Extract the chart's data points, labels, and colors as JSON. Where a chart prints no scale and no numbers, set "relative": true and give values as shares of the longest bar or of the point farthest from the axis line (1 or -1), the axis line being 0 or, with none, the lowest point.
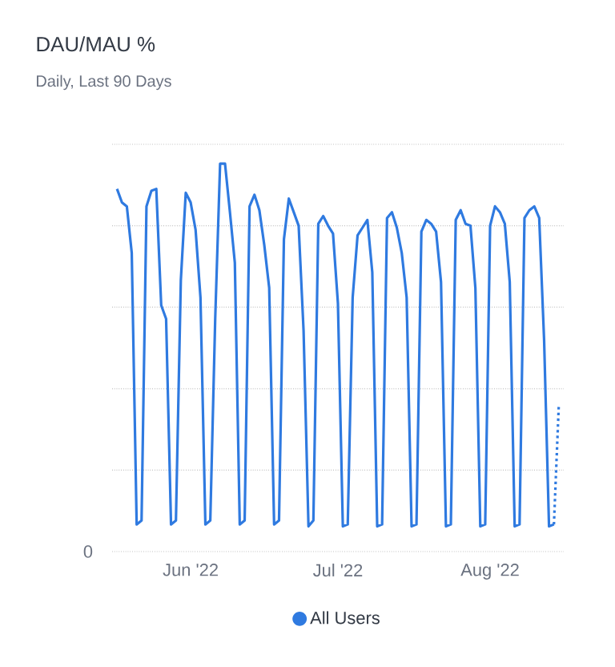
{
  "chart_data": {
    "type": "line",
    "title": "DAU/MAU %",
    "subtitle": "Daily, Last 90 Days",
    "relative": true,
    "grid": "y",
    "legend": "bottom",
    "marker": "none",
    "xlim": [
      "2022-05-16",
      "2022-08-16"
    ],
    "xticks": [
      {
        "value": "2022-06-01",
        "label": "Jun '22"
      },
      {
        "value": "2022-07-01",
        "label": "Jul '22"
      },
      {
        "value": "2022-08-01",
        "label": "Aug '22"
      }
    ],
    "annotations": [
      "0"
    ],
    "series": [
      {
        "name": "All Users",
        "color": "#2f7ae0",
        "line_style": "solid",
        "x": [
          "2022-05-17",
          "2022-05-18",
          "2022-05-19",
          "2022-05-20",
          "2022-05-21",
          "2022-05-22",
          "2022-05-23",
          "2022-05-24",
          "2022-05-25",
          "2022-05-26",
          "2022-05-27",
          "2022-05-28",
          "2022-05-29",
          "2022-05-30",
          "2022-05-31",
          "2022-06-01",
          "2022-06-02",
          "2022-06-03",
          "2022-06-04",
          "2022-06-05",
          "2022-06-06",
          "2022-06-07",
          "2022-06-08",
          "2022-06-09",
          "2022-06-10",
          "2022-06-11",
          "2022-06-12",
          "2022-06-13",
          "2022-06-14",
          "2022-06-15",
          "2022-06-16",
          "2022-06-17",
          "2022-06-18",
          "2022-06-19",
          "2022-06-20",
          "2022-06-21",
          "2022-06-22",
          "2022-06-23",
          "2022-06-24",
          "2022-06-25",
          "2022-06-26",
          "2022-06-27",
          "2022-06-28",
          "2022-06-29",
          "2022-06-30",
          "2022-07-01",
          "2022-07-02",
          "2022-07-03",
          "2022-07-04",
          "2022-07-05",
          "2022-07-06",
          "2022-07-07",
          "2022-07-08",
          "2022-07-09",
          "2022-07-10",
          "2022-07-11",
          "2022-07-12",
          "2022-07-13",
          "2022-07-14",
          "2022-07-15",
          "2022-07-16",
          "2022-07-17",
          "2022-07-18",
          "2022-07-19",
          "2022-07-20",
          "2022-07-21",
          "2022-07-22",
          "2022-07-23",
          "2022-07-24",
          "2022-07-25",
          "2022-07-26",
          "2022-07-27",
          "2022-07-28",
          "2022-07-29",
          "2022-07-30",
          "2022-07-31",
          "2022-08-01",
          "2022-08-02",
          "2022-08-03",
          "2022-08-04",
          "2022-08-05",
          "2022-08-06",
          "2022-08-07",
          "2022-08-08",
          "2022-08-09",
          "2022-08-10",
          "2022-08-11",
          "2022-08-12",
          "2022-08-13",
          "2022-08-14"
        ],
        "values": [
          0.935,
          0.9,
          0.89,
          0.77,
          0.07,
          0.08,
          0.89,
          0.93,
          0.935,
          0.635,
          0.6,
          0.07,
          0.08,
          0.7,
          0.925,
          0.9,
          0.83,
          0.655,
          0.07,
          0.08,
          0.6,
          1.0,
          1.0,
          0.875,
          0.745,
          0.07,
          0.08,
          0.89,
          0.92,
          0.88,
          0.79,
          0.68,
          0.07,
          0.08,
          0.805,
          0.91,
          0.875,
          0.84,
          0.57,
          0.065,
          0.08,
          0.845,
          0.865,
          0.84,
          0.82,
          0.64,
          0.065,
          0.07,
          0.655,
          0.815,
          0.835,
          0.855,
          0.72,
          0.065,
          0.07,
          0.86,
          0.875,
          0.835,
          0.77,
          0.655,
          0.065,
          0.07,
          0.825,
          0.855,
          0.845,
          0.825,
          0.695,
          0.065,
          0.07,
          0.855,
          0.88,
          0.845,
          0.84,
          0.68,
          0.065,
          0.07,
          0.84,
          0.89,
          0.875,
          0.845,
          0.695,
          0.065,
          0.07,
          0.86,
          0.88,
          0.89,
          0.86,
          0.545,
          0.065,
          0.07
        ]
      },
      {
        "color": "#2f7ae0",
        "line_style": "dotted",
        "x": [
          "2022-08-14",
          "2022-08-15"
        ],
        "values": [
          0.07,
          0.38
        ]
      }
    ]
  }
}
